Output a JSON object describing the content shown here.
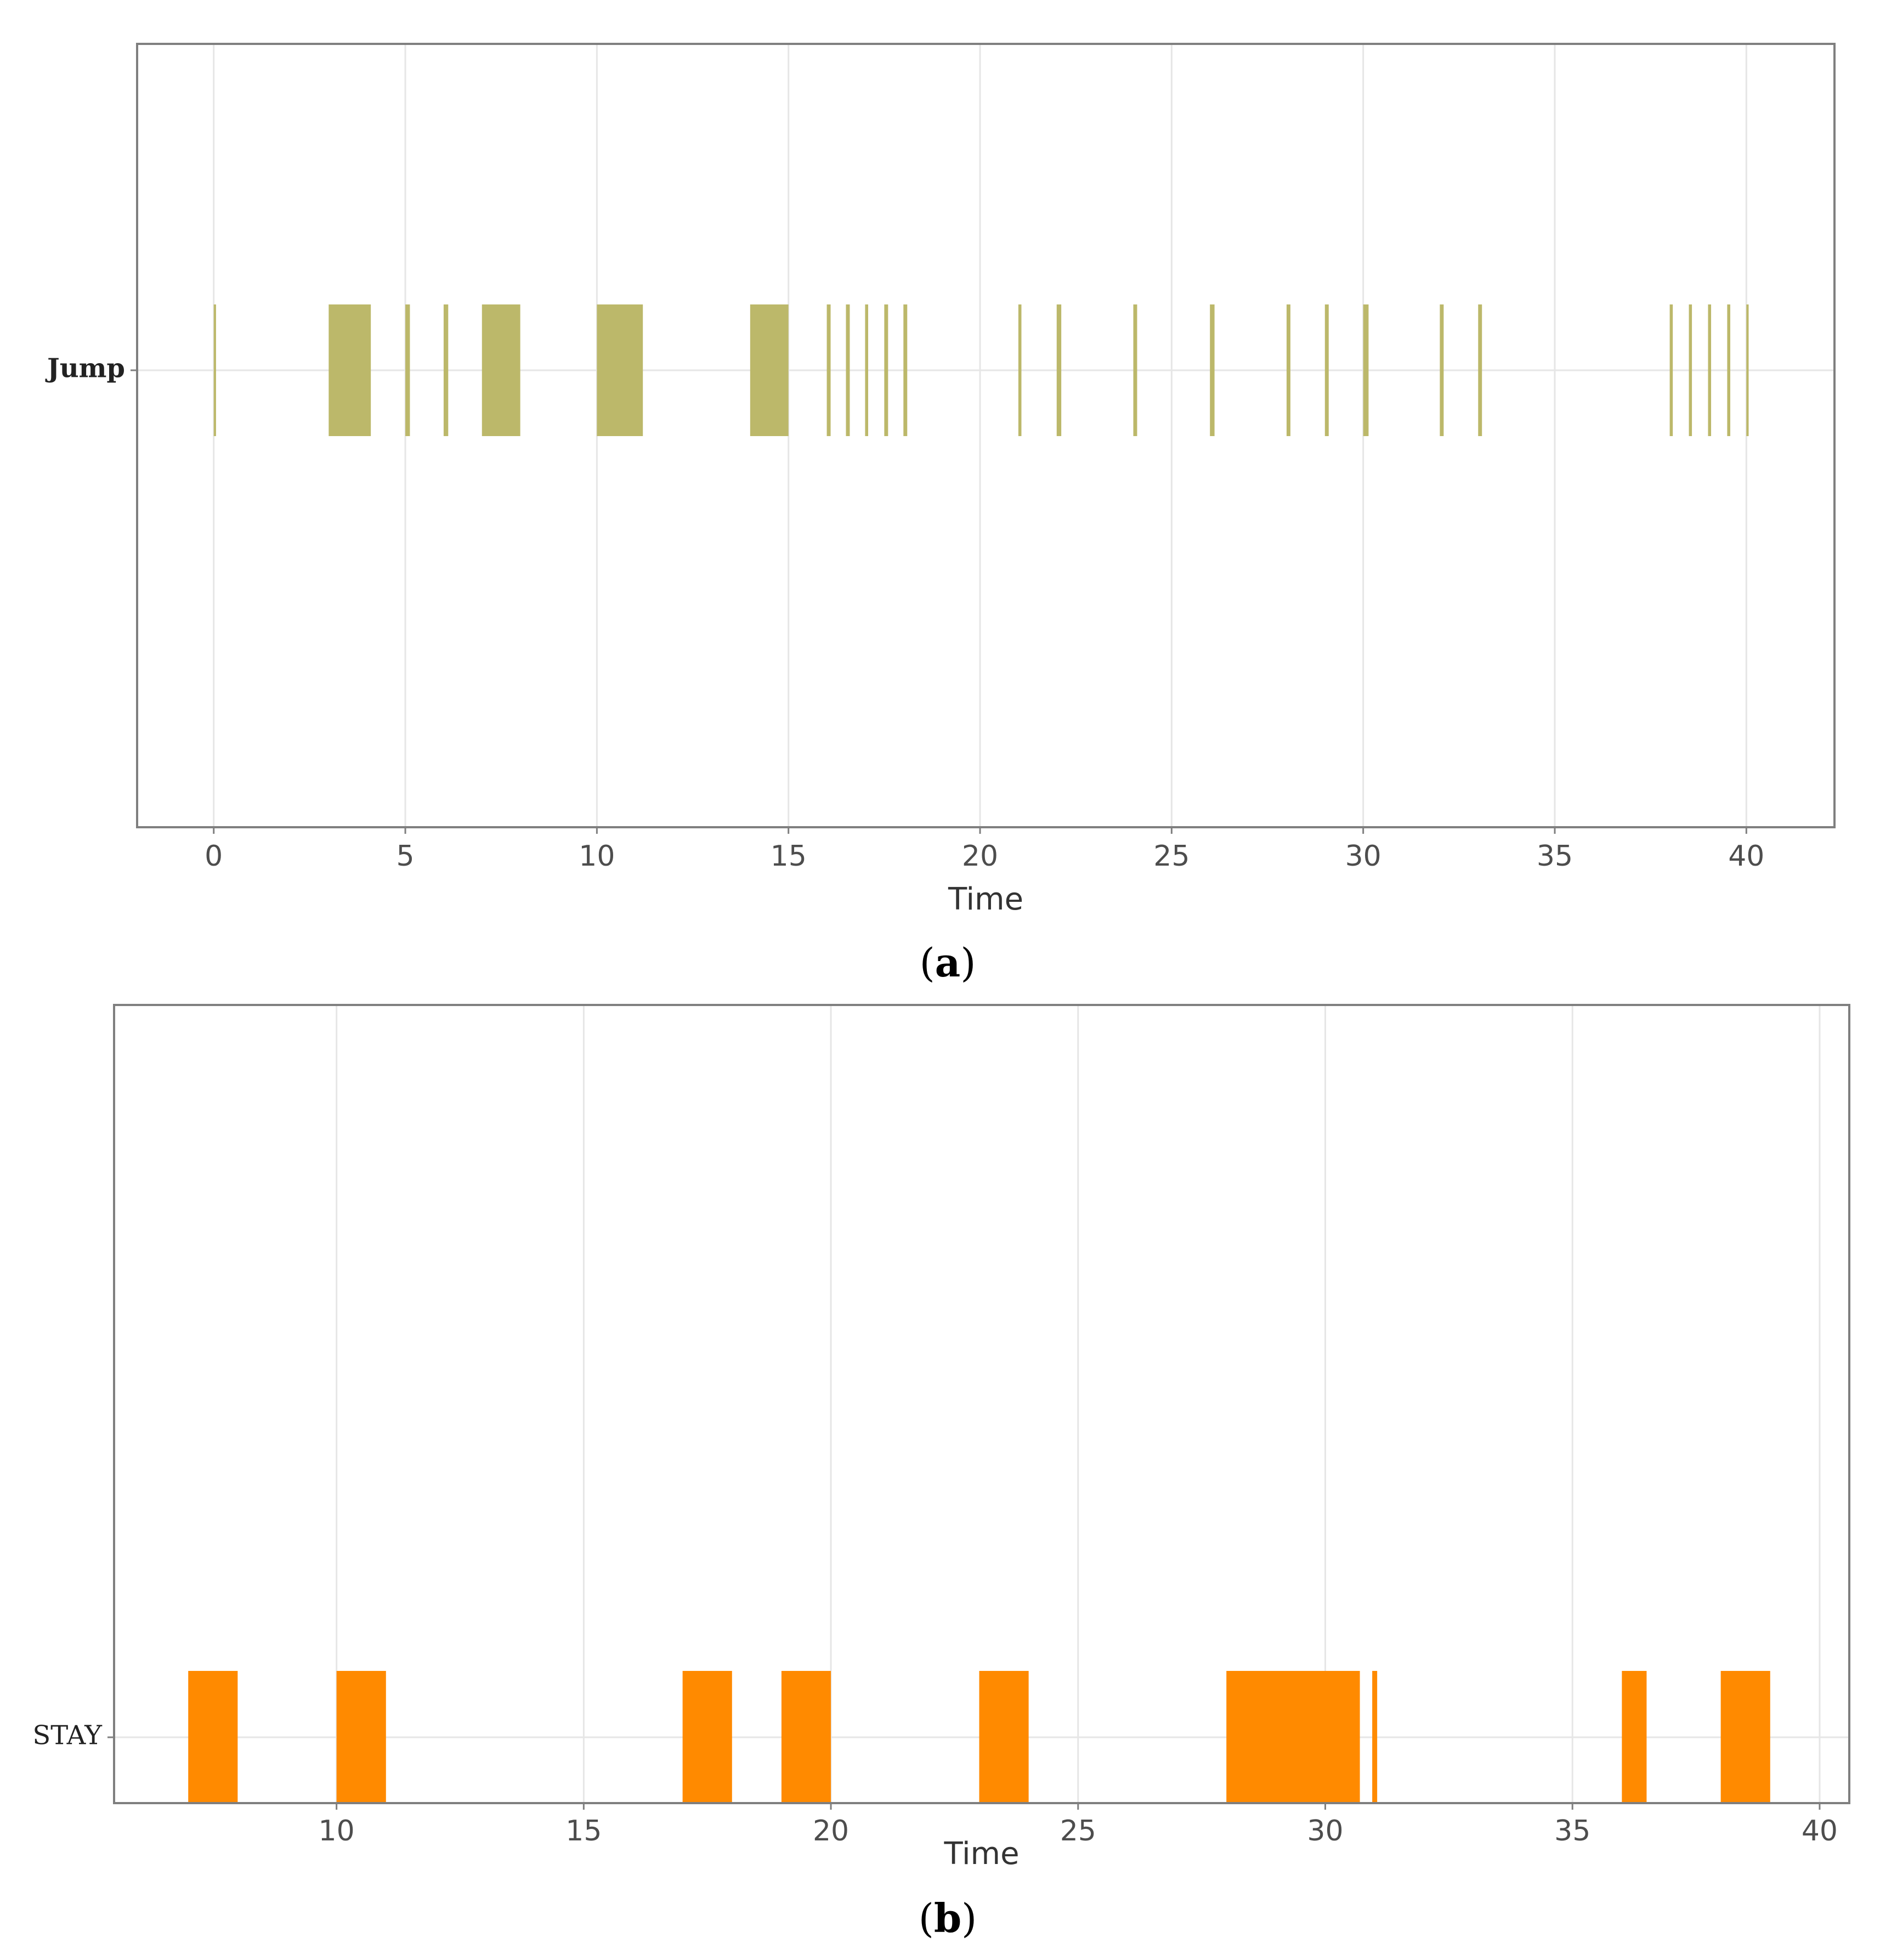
{
  "chart_data": [
    {
      "type": "timeline",
      "panel_label": "a",
      "category": "Jump",
      "xlabel": "Time",
      "xlim": [
        -2,
        42.3
      ],
      "xticks": [
        0,
        5,
        10,
        15,
        20,
        25,
        30,
        35,
        40
      ],
      "grid": true,
      "color": "#bcb86a",
      "intervals": [
        [
          0.0,
          0.06
        ],
        [
          3.0,
          4.1
        ],
        [
          5.0,
          5.12
        ],
        [
          6.0,
          6.12
        ],
        [
          7.0,
          8.0
        ],
        [
          10.0,
          11.2
        ],
        [
          14.0,
          15.0
        ],
        [
          16.0,
          16.1
        ],
        [
          16.5,
          16.6
        ],
        [
          17.0,
          17.08
        ],
        [
          17.5,
          17.6
        ],
        [
          18.0,
          18.1
        ],
        [
          21.0,
          21.08
        ],
        [
          22.0,
          22.12
        ],
        [
          24.0,
          24.1
        ],
        [
          26.0,
          26.12
        ],
        [
          28.0,
          28.1
        ],
        [
          29.0,
          29.1
        ],
        [
          30.0,
          30.14
        ],
        [
          32.0,
          32.1
        ],
        [
          33.0,
          33.1
        ],
        [
          38.0,
          38.08
        ],
        [
          38.5,
          38.58
        ],
        [
          39.0,
          39.08
        ],
        [
          39.5,
          39.58
        ],
        [
          40.0,
          40.06
        ]
      ]
    },
    {
      "type": "timeline",
      "panel_label": "b",
      "category": "STAY",
      "xlabel": "Time",
      "xlim": [
        5.5,
        40.6
      ],
      "xticks": [
        10,
        15,
        20,
        25,
        30,
        35,
        40
      ],
      "grid": true,
      "color": "#ff8a00",
      "intervals": [
        [
          7.0,
          8.0
        ],
        [
          10.0,
          11.0
        ],
        [
          17.0,
          18.0
        ],
        [
          19.0,
          20.0
        ],
        [
          23.0,
          24.0
        ],
        [
          28.0,
          30.7
        ],
        [
          30.95,
          31.05
        ],
        [
          36.0,
          36.5
        ],
        [
          38.0,
          39.0
        ]
      ]
    }
  ]
}
